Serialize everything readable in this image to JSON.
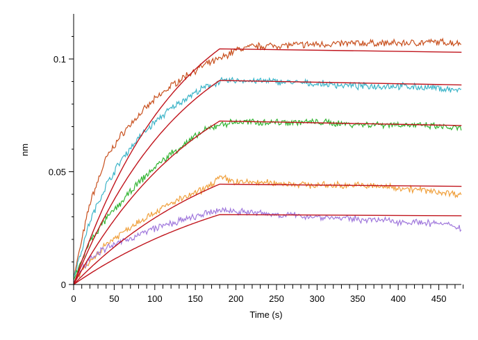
{
  "chart_data": {
    "type": "line",
    "xlabel": "Time (s)",
    "ylabel": "nm",
    "xlim": [
      0,
      480
    ],
    "ylim": [
      0,
      0.12
    ],
    "xticks": [
      0,
      50,
      100,
      150,
      200,
      250,
      300,
      350,
      400,
      450
    ],
    "yticks": [
      0,
      0.05,
      0.1
    ],
    "ytick_labels": [
      "0",
      "0.05",
      "0.1"
    ],
    "association_end": 180,
    "grid": false,
    "legend": "none",
    "fit_color": "#c0141c",
    "series": [
      {
        "color": "#c8501e",
        "fit_rate": 0.0077,
        "fit_plateau_x": 180,
        "fit_plateau_y": 0.1045,
        "fit_end_y": 0.103,
        "data": [
          [
            0,
            0.003
          ],
          [
            20,
            0.036
          ],
          [
            40,
            0.056
          ],
          [
            60,
            0.067
          ],
          [
            80,
            0.075
          ],
          [
            100,
            0.082
          ],
          [
            120,
            0.088
          ],
          [
            140,
            0.093
          ],
          [
            160,
            0.097
          ],
          [
            180,
            0.1
          ],
          [
            200,
            0.104
          ],
          [
            220,
            0.1055
          ],
          [
            250,
            0.106
          ],
          [
            300,
            0.1065
          ],
          [
            350,
            0.107
          ],
          [
            400,
            0.107
          ],
          [
            450,
            0.1075
          ],
          [
            478,
            0.107
          ]
        ]
      },
      {
        "color": "#3cb4c8",
        "fit_rate": 0.0072,
        "fit_plateau_x": 180,
        "fit_plateau_y": 0.0905,
        "fit_end_y": 0.0885,
        "data": [
          [
            0,
            0.003
          ],
          [
            20,
            0.028
          ],
          [
            40,
            0.044
          ],
          [
            60,
            0.056
          ],
          [
            80,
            0.065
          ],
          [
            100,
            0.072
          ],
          [
            120,
            0.078
          ],
          [
            140,
            0.083
          ],
          [
            160,
            0.087
          ],
          [
            180,
            0.09
          ],
          [
            200,
            0.0905
          ],
          [
            250,
            0.09
          ],
          [
            300,
            0.089
          ],
          [
            350,
            0.088
          ],
          [
            400,
            0.088
          ],
          [
            450,
            0.087
          ],
          [
            478,
            0.086
          ]
        ]
      },
      {
        "color": "#32b432",
        "fit_rate": 0.0061,
        "fit_plateau_x": 180,
        "fit_plateau_y": 0.0725,
        "fit_end_y": 0.0705,
        "data": [
          [
            0,
            0.002
          ],
          [
            20,
            0.019
          ],
          [
            40,
            0.029
          ],
          [
            60,
            0.037
          ],
          [
            80,
            0.045
          ],
          [
            100,
            0.052
          ],
          [
            120,
            0.058
          ],
          [
            140,
            0.063
          ],
          [
            160,
            0.068
          ],
          [
            180,
            0.071
          ],
          [
            200,
            0.072
          ],
          [
            250,
            0.072
          ],
          [
            300,
            0.072
          ],
          [
            350,
            0.071
          ],
          [
            400,
            0.071
          ],
          [
            450,
            0.07
          ],
          [
            478,
            0.069
          ]
        ]
      },
      {
        "color": "#f0a03c",
        "fit_rate": 0.005,
        "fit_plateau_x": 180,
        "fit_plateau_y": 0.0445,
        "fit_end_y": 0.0435,
        "data": [
          [
            0,
            0.001
          ],
          [
            20,
            0.01
          ],
          [
            40,
            0.018
          ],
          [
            60,
            0.023
          ],
          [
            80,
            0.028
          ],
          [
            100,
            0.032
          ],
          [
            120,
            0.036
          ],
          [
            140,
            0.039
          ],
          [
            160,
            0.042
          ],
          [
            180,
            0.0475
          ],
          [
            200,
            0.0455
          ],
          [
            250,
            0.045
          ],
          [
            300,
            0.044
          ],
          [
            350,
            0.044
          ],
          [
            400,
            0.043
          ],
          [
            450,
            0.041
          ],
          [
            478,
            0.04
          ]
        ]
      },
      {
        "color": "#a078dc",
        "fit_rate": 0.0044,
        "fit_plateau_x": 180,
        "fit_plateau_y": 0.031,
        "fit_end_y": 0.0305,
        "data": [
          [
            0,
            0.001
          ],
          [
            20,
            0.012
          ],
          [
            40,
            0.016
          ],
          [
            60,
            0.019
          ],
          [
            80,
            0.022
          ],
          [
            100,
            0.025
          ],
          [
            120,
            0.027
          ],
          [
            140,
            0.029
          ],
          [
            160,
            0.031
          ],
          [
            180,
            0.033
          ],
          [
            200,
            0.0325
          ],
          [
            250,
            0.031
          ],
          [
            300,
            0.03
          ],
          [
            350,
            0.029
          ],
          [
            400,
            0.028
          ],
          [
            450,
            0.027
          ],
          [
            478,
            0.025
          ]
        ]
      }
    ]
  }
}
